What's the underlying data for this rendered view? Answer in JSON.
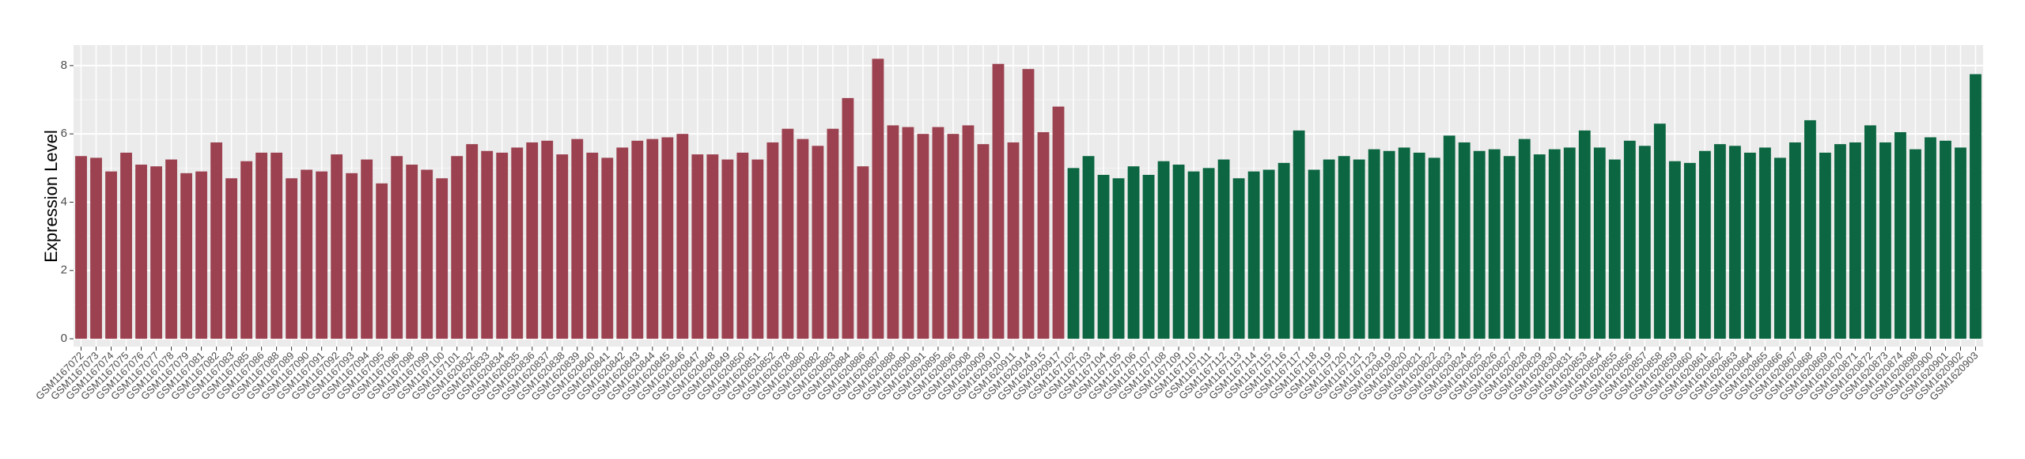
{
  "chart_data": {
    "type": "bar",
    "y_label": "Expression Level",
    "ylim": [
      -0.23,
      8.6
    ],
    "yticks": [
      0,
      2,
      4,
      6,
      8
    ],
    "grid": true,
    "series": [
      {
        "color": "#9c4150",
        "categories": [
          "GSM1167072",
          "GSM1167073",
          "GSM1167074",
          "GSM1167075",
          "GSM1167076",
          "GSM1167077",
          "GSM1167078",
          "GSM1167079",
          "GSM1167081",
          "GSM1167082",
          "GSM1167083",
          "GSM1167085",
          "GSM1167086",
          "GSM1167088",
          "GSM1167089",
          "GSM1167090",
          "GSM1167091",
          "GSM1167092",
          "GSM1167093",
          "GSM1167094",
          "GSM1167095",
          "GSM1167096",
          "GSM1167098",
          "GSM1167099",
          "GSM1167100",
          "GSM1167101",
          "GSM1620832",
          "GSM1620833",
          "GSM1620834",
          "GSM1620835",
          "GSM1620836",
          "GSM1620837",
          "GSM1620838",
          "GSM1620839",
          "GSM1620840",
          "GSM1620841",
          "GSM1620842",
          "GSM1620843",
          "GSM1620844",
          "GSM1620845",
          "GSM1620846",
          "GSM1620847",
          "GSM1620848",
          "GSM1620849",
          "GSM1620850",
          "GSM1620851",
          "GSM1620852",
          "GSM1620878",
          "GSM1620880",
          "GSM1620882",
          "GSM1620883",
          "GSM1620884",
          "GSM1620886",
          "GSM1620887",
          "GSM1620888",
          "GSM1620890",
          "GSM1620891",
          "GSM1620895",
          "GSM1620896",
          "GSM1620908",
          "GSM1620909",
          "GSM1620910",
          "GSM1620911",
          "GSM1620914",
          "GSM1620915",
          "GSM1620917"
        ],
        "values": [
          5.35,
          5.3,
          4.9,
          5.45,
          5.1,
          5.05,
          5.25,
          4.85,
          4.9,
          5.75,
          4.7,
          5.2,
          5.45,
          5.45,
          4.7,
          4.95,
          4.9,
          5.4,
          4.85,
          5.25,
          4.55,
          5.35,
          5.1,
          4.95,
          4.7,
          5.35,
          5.7,
          5.5,
          5.45,
          5.6,
          5.75,
          5.8,
          5.4,
          5.85,
          5.45,
          5.3,
          5.6,
          5.8,
          5.85,
          5.9,
          6.0,
          5.4,
          5.4,
          5.25,
          5.45,
          5.25,
          5.75,
          6.15,
          5.85,
          5.65,
          6.15,
          7.05,
          5.05,
          8.2,
          6.25,
          6.2,
          6.0,
          6.2,
          6.0,
          6.25,
          5.7,
          8.05,
          5.75,
          7.9,
          6.05,
          6.8
        ]
      },
      {
        "color": "#0b6641",
        "categories": [
          "GSM1167102",
          "GSM1167103",
          "GSM1167104",
          "GSM1167105",
          "GSM1167106",
          "GSM1167107",
          "GSM1167108",
          "GSM1167109",
          "GSM1167110",
          "GSM1167111",
          "GSM1167112",
          "GSM1167113",
          "GSM1167114",
          "GSM1167115",
          "GSM1167116",
          "GSM1167117",
          "GSM1167118",
          "GSM1167119",
          "GSM1167120",
          "GSM1167121",
          "GSM1167123",
          "GSM1620819",
          "GSM1620820",
          "GSM1620821",
          "GSM1620822",
          "GSM1620823",
          "GSM1620824",
          "GSM1620825",
          "GSM1620826",
          "GSM1620827",
          "GSM1620828",
          "GSM1620829",
          "GSM1620830",
          "GSM1620831",
          "GSM1620853",
          "GSM1620854",
          "GSM1620855",
          "GSM1620856",
          "GSM1620857",
          "GSM1620858",
          "GSM1620859",
          "GSM1620860",
          "GSM1620861",
          "GSM1620862",
          "GSM1620863",
          "GSM1620864",
          "GSM1620865",
          "GSM1620866",
          "GSM1620867",
          "GSM1620868",
          "GSM1620869",
          "GSM1620870",
          "GSM1620871",
          "GSM1620872",
          "GSM1620873",
          "GSM1620874",
          "GSM1620898",
          "GSM1620900",
          "GSM1620901",
          "GSM1620902",
          "GSM1620903"
        ],
        "values": [
          5.0,
          5.35,
          4.8,
          4.7,
          5.05,
          4.8,
          5.2,
          5.1,
          4.9,
          5.0,
          5.25,
          4.7,
          4.9,
          4.95,
          5.15,
          6.1,
          4.95,
          5.25,
          5.35,
          5.25,
          5.55,
          5.5,
          5.6,
          5.45,
          5.3,
          5.95,
          5.75,
          5.5,
          5.55,
          5.35,
          5.85,
          5.4,
          5.55,
          5.6,
          6.1,
          5.6,
          5.25,
          5.8,
          5.65,
          6.3,
          5.2,
          5.15,
          5.5,
          5.7,
          5.65,
          5.45,
          5.6,
          5.3,
          5.75,
          6.4,
          5.45,
          5.7,
          5.75,
          6.25,
          5.75,
          6.05,
          5.55,
          5.9,
          5.8,
          5.6,
          7.75
        ]
      }
    ]
  }
}
